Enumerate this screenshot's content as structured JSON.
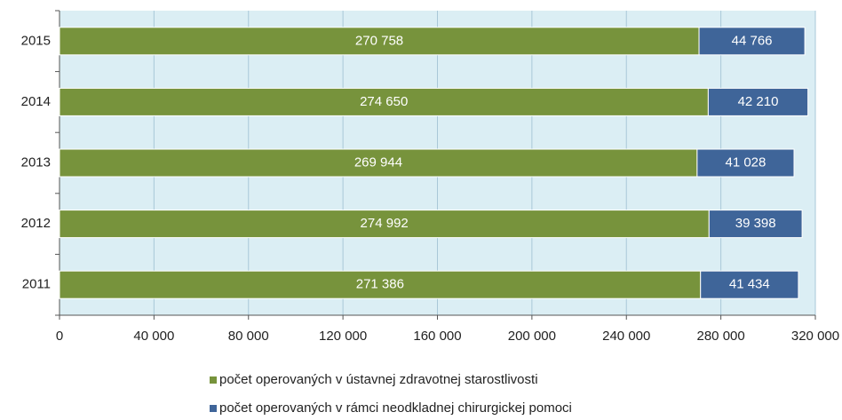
{
  "chart_data": {
    "type": "stacked_horizontal_bar",
    "categories": [
      "2015",
      "2014",
      "2013",
      "2012",
      "2011"
    ],
    "series": [
      {
        "name": "počet operovaných v ústavnej zdravotnej starostlivosti",
        "color": "#77933c",
        "values": [
          270758,
          274650,
          269944,
          274992,
          271386
        ],
        "value_labels": [
          "270 758",
          "274 650",
          "269 944",
          "274 992",
          "271 386"
        ]
      },
      {
        "name": "počet operovaných v rámci neodkladnej chirurgickej pomoci",
        "color": "#3f6599",
        "values": [
          44766,
          42210,
          41028,
          39398,
          41434
        ],
        "value_labels": [
          "44 766",
          "42 210",
          "41 028",
          "39 398",
          "41 434"
        ]
      }
    ],
    "xlim": [
      0,
      320000
    ],
    "xticks": [
      0,
      {
        "value": 40000,
        "label": "40 000"
      },
      {
        "value": 80000,
        "label": "80 000"
      },
      {
        "value": 120000,
        "label": "120 000"
      },
      {
        "value": 160000,
        "label": "160 000"
      },
      {
        "value": 200000,
        "label": "200 000"
      },
      {
        "value": 240000,
        "label": "240 000"
      },
      {
        "value": 280000,
        "label": "280 000"
      },
      {
        "value": 320000,
        "label": "320 000"
      }
    ],
    "grid": true
  }
}
